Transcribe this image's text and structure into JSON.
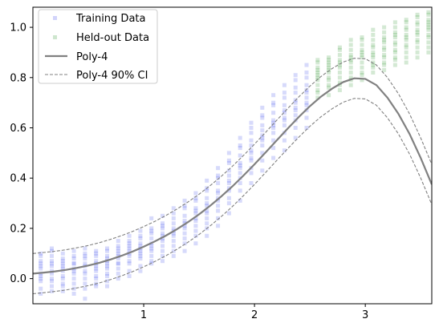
{
  "chart_data": {
    "type": "scatter",
    "title": "",
    "xlabel": "",
    "ylabel": "",
    "xlim": [
      0.0,
      3.6
    ],
    "ylim": [
      -0.1,
      1.08
    ],
    "x_ticks": [
      1,
      2,
      3
    ],
    "x_tick_labels": [
      "1",
      "2",
      "3"
    ],
    "y_ticks": [
      0.0,
      0.2,
      0.4,
      0.6,
      0.8,
      1.0
    ],
    "y_tick_labels": [
      "0.0",
      "0.2",
      "0.4",
      "0.6",
      "0.8",
      "1.0"
    ],
    "grid": false,
    "legend_position": "top-left",
    "colors": {
      "training": "#4a55ee",
      "heldout": "#3a9a3a",
      "fit": "#808080"
    },
    "series": [
      {
        "name": "Training Data",
        "kind": "points",
        "x": [
          0.07,
          0.07,
          0.07,
          0.07,
          0.07,
          0.07,
          0.07,
          0.07,
          0.07,
          0.07,
          0.07,
          0.07,
          0.17,
          0.17,
          0.17,
          0.17,
          0.17,
          0.17,
          0.17,
          0.17,
          0.17,
          0.17,
          0.17,
          0.17,
          0.27,
          0.27,
          0.27,
          0.27,
          0.27,
          0.27,
          0.27,
          0.27,
          0.27,
          0.27,
          0.27,
          0.27,
          0.37,
          0.37,
          0.37,
          0.37,
          0.37,
          0.37,
          0.37,
          0.37,
          0.37,
          0.37,
          0.37,
          0.37,
          0.47,
          0.47,
          0.47,
          0.47,
          0.47,
          0.47,
          0.47,
          0.47,
          0.47,
          0.47,
          0.47,
          0.47,
          0.57,
          0.57,
          0.57,
          0.57,
          0.57,
          0.57,
          0.57,
          0.57,
          0.57,
          0.57,
          0.57,
          0.57,
          0.67,
          0.67,
          0.67,
          0.67,
          0.67,
          0.67,
          0.67,
          0.67,
          0.67,
          0.67,
          0.67,
          0.67,
          0.77,
          0.77,
          0.77,
          0.77,
          0.77,
          0.77,
          0.77,
          0.77,
          0.77,
          0.77,
          0.77,
          0.77,
          0.87,
          0.87,
          0.87,
          0.87,
          0.87,
          0.87,
          0.87,
          0.87,
          0.87,
          0.87,
          0.87,
          0.87,
          0.97,
          0.97,
          0.97,
          0.97,
          0.97,
          0.97,
          0.97,
          0.97,
          0.97,
          0.97,
          0.97,
          0.97,
          1.07,
          1.07,
          1.07,
          1.07,
          1.07,
          1.07,
          1.07,
          1.07,
          1.07,
          1.07,
          1.07,
          1.07,
          1.17,
          1.17,
          1.17,
          1.17,
          1.17,
          1.17,
          1.17,
          1.17,
          1.17,
          1.17,
          1.17,
          1.17,
          1.27,
          1.27,
          1.27,
          1.27,
          1.27,
          1.27,
          1.27,
          1.27,
          1.27,
          1.27,
          1.27,
          1.27,
          1.37,
          1.37,
          1.37,
          1.37,
          1.37,
          1.37,
          1.37,
          1.37,
          1.37,
          1.37,
          1.37,
          1.37,
          1.47,
          1.47,
          1.47,
          1.47,
          1.47,
          1.47,
          1.47,
          1.47,
          1.47,
          1.47,
          1.47,
          1.47,
          1.57,
          1.57,
          1.57,
          1.57,
          1.57,
          1.57,
          1.57,
          1.57,
          1.57,
          1.57,
          1.57,
          1.57,
          1.67,
          1.67,
          1.67,
          1.67,
          1.67,
          1.67,
          1.67,
          1.67,
          1.67,
          1.67,
          1.67,
          1.67,
          1.77,
          1.77,
          1.77,
          1.77,
          1.77,
          1.77,
          1.77,
          1.77,
          1.77,
          1.77,
          1.77,
          1.77,
          1.87,
          1.87,
          1.87,
          1.87,
          1.87,
          1.87,
          1.87,
          1.87,
          1.87,
          1.87,
          1.87,
          1.87,
          1.97,
          1.97,
          1.97,
          1.97,
          1.97,
          1.97,
          1.97,
          1.97,
          1.97,
          1.97,
          1.97,
          1.97,
          2.07,
          2.07,
          2.07,
          2.07,
          2.07,
          2.07,
          2.07,
          2.07,
          2.07,
          2.07,
          2.07,
          2.07,
          2.17,
          2.17,
          2.17,
          2.17,
          2.17,
          2.17,
          2.17,
          2.17,
          2.17,
          2.17,
          2.17,
          2.17,
          2.27,
          2.27,
          2.27,
          2.27,
          2.27,
          2.27,
          2.27,
          2.27,
          2.27,
          2.27,
          2.27,
          2.27,
          2.37,
          2.37,
          2.37,
          2.37,
          2.37,
          2.37,
          2.37,
          2.37,
          2.37,
          2.37,
          2.37,
          2.37,
          2.47,
          2.47,
          2.47,
          2.47,
          2.47,
          2.47,
          2.47,
          2.47,
          2.47,
          2.47,
          2.47,
          2.47
        ],
        "y": [
          0.06,
          0.02,
          -0.04,
          0.1,
          0.04,
          -0.01,
          0.07,
          0.0,
          -0.06,
          0.05,
          0.09,
          0.01,
          0.03,
          0.11,
          -0.03,
          0.05,
          0.0,
          0.07,
          -0.05,
          0.09,
          0.02,
          0.06,
          -0.01,
          0.12,
          0.04,
          -0.02,
          0.08,
          0.01,
          0.06,
          -0.05,
          0.1,
          0.03,
          0.0,
          0.07,
          -0.03,
          0.05,
          0.08,
          0.02,
          -0.04,
          0.06,
          0.11,
          0.0,
          0.04,
          -0.02,
          0.09,
          0.03,
          0.06,
          -0.06,
          0.05,
          0.1,
          -0.02,
          0.03,
          0.08,
          0.0,
          0.06,
          -0.04,
          0.09,
          0.02,
          0.12,
          -0.08,
          0.07,
          0.03,
          0.11,
          -0.02,
          0.05,
          0.09,
          0.01,
          0.06,
          -0.03,
          0.1,
          0.04,
          0.0,
          0.04,
          0.08,
          -0.01,
          0.12,
          0.05,
          0.02,
          0.09,
          -0.03,
          0.06,
          0.11,
          0.01,
          0.07,
          0.1,
          0.06,
          0.13,
          0.02,
          0.08,
          0.15,
          0.04,
          0.11,
          0.0,
          0.09,
          0.06,
          0.12,
          0.12,
          0.07,
          0.15,
          0.03,
          0.1,
          0.17,
          0.06,
          0.13,
          0.09,
          0.01,
          0.14,
          0.11,
          0.13,
          0.09,
          0.16,
          0.05,
          0.12,
          0.19,
          0.08,
          0.14,
          0.11,
          0.03,
          0.17,
          0.1,
          0.16,
          0.11,
          0.2,
          0.07,
          0.13,
          0.24,
          0.09,
          0.18,
          0.14,
          0.06,
          0.19,
          0.12,
          0.18,
          0.13,
          0.22,
          0.09,
          0.16,
          0.25,
          0.11,
          0.2,
          0.15,
          0.07,
          0.21,
          0.17,
          0.2,
          0.15,
          0.24,
          0.11,
          0.18,
          0.28,
          0.13,
          0.22,
          0.17,
          0.09,
          0.26,
          0.19,
          0.23,
          0.18,
          0.28,
          0.14,
          0.21,
          0.31,
          0.16,
          0.25,
          0.2,
          0.11,
          0.29,
          0.22,
          0.27,
          0.21,
          0.31,
          0.17,
          0.24,
          0.34,
          0.19,
          0.28,
          0.23,
          0.14,
          0.32,
          0.26,
          0.29,
          0.24,
          0.35,
          0.2,
          0.27,
          0.39,
          0.22,
          0.32,
          0.26,
          0.17,
          0.36,
          0.3,
          0.35,
          0.29,
          0.4,
          0.24,
          0.32,
          0.44,
          0.27,
          0.38,
          0.31,
          0.21,
          0.41,
          0.34,
          0.41,
          0.35,
          0.46,
          0.3,
          0.38,
          0.5,
          0.32,
          0.43,
          0.36,
          0.26,
          0.47,
          0.39,
          0.46,
          0.4,
          0.52,
          0.35,
          0.44,
          0.56,
          0.38,
          0.49,
          0.42,
          0.31,
          0.53,
          0.45,
          0.53,
          0.47,
          0.58,
          0.42,
          0.5,
          0.62,
          0.44,
          0.55,
          0.48,
          0.38,
          0.6,
          0.51,
          0.59,
          0.53,
          0.64,
          0.47,
          0.56,
          0.68,
          0.5,
          0.61,
          0.55,
          0.43,
          0.65,
          0.57,
          0.63,
          0.58,
          0.69,
          0.52,
          0.61,
          0.73,
          0.55,
          0.66,
          0.6,
          0.48,
          0.7,
          0.62,
          0.66,
          0.61,
          0.72,
          0.55,
          0.64,
          0.77,
          0.58,
          0.69,
          0.63,
          0.51,
          0.74,
          0.67,
          0.71,
          0.65,
          0.76,
          0.6,
          0.68,
          0.81,
          0.63,
          0.74,
          0.67,
          0.56,
          0.79,
          0.7,
          0.74,
          0.69,
          0.8,
          0.64,
          0.72,
          0.85,
          0.67,
          0.77,
          0.7,
          0.6,
          0.82,
          0.75
        ]
      },
      {
        "name": "Held-out Data",
        "kind": "points",
        "x": [
          2.57,
          2.57,
          2.57,
          2.57,
          2.57,
          2.57,
          2.57,
          2.57,
          2.57,
          2.57,
          2.57,
          2.57,
          2.67,
          2.67,
          2.67,
          2.67,
          2.67,
          2.67,
          2.67,
          2.67,
          2.67,
          2.67,
          2.67,
          2.67,
          2.77,
          2.77,
          2.77,
          2.77,
          2.77,
          2.77,
          2.77,
          2.77,
          2.77,
          2.77,
          2.77,
          2.77,
          2.87,
          2.87,
          2.87,
          2.87,
          2.87,
          2.87,
          2.87,
          2.87,
          2.87,
          2.87,
          2.87,
          2.87,
          2.97,
          2.97,
          2.97,
          2.97,
          2.97,
          2.97,
          2.97,
          2.97,
          2.97,
          2.97,
          2.97,
          2.97,
          3.07,
          3.07,
          3.07,
          3.07,
          3.07,
          3.07,
          3.07,
          3.07,
          3.07,
          3.07,
          3.07,
          3.07,
          3.17,
          3.17,
          3.17,
          3.17,
          3.17,
          3.17,
          3.17,
          3.17,
          3.17,
          3.17,
          3.17,
          3.17,
          3.27,
          3.27,
          3.27,
          3.27,
          3.27,
          3.27,
          3.27,
          3.27,
          3.27,
          3.27,
          3.27,
          3.27,
          3.37,
          3.37,
          3.37,
          3.37,
          3.37,
          3.37,
          3.37,
          3.37,
          3.37,
          3.37,
          3.37,
          3.37,
          3.47,
          3.47,
          3.47,
          3.47,
          3.47,
          3.47,
          3.47,
          3.47,
          3.47,
          3.47,
          3.47,
          3.47,
          3.57,
          3.57,
          3.57,
          3.57,
          3.57,
          3.57,
          3.57,
          3.57,
          3.57,
          3.57,
          3.57,
          3.57
        ],
        "y": [
          0.84,
          0.79,
          0.87,
          0.75,
          0.82,
          0.72,
          0.8,
          0.86,
          0.77,
          0.83,
          0.74,
          0.81,
          0.86,
          0.8,
          0.88,
          0.77,
          0.84,
          0.73,
          0.82,
          0.87,
          0.79,
          0.85,
          0.76,
          0.83,
          0.87,
          0.82,
          0.91,
          0.78,
          0.85,
          0.75,
          0.89,
          0.8,
          0.84,
          0.77,
          0.92,
          0.86,
          0.89,
          0.84,
          0.93,
          0.8,
          0.87,
          0.77,
          0.91,
          0.82,
          0.86,
          0.79,
          0.95,
          0.88,
          0.91,
          0.86,
          0.95,
          0.82,
          0.89,
          0.79,
          0.93,
          0.84,
          0.88,
          0.81,
          0.96,
          0.9,
          0.92,
          0.88,
          0.97,
          0.84,
          0.9,
          0.82,
          0.95,
          0.86,
          0.89,
          0.85,
          0.99,
          0.93,
          0.94,
          0.89,
          0.98,
          0.85,
          0.92,
          0.83,
          0.96,
          0.88,
          0.91,
          0.86,
          1.0,
          0.95,
          0.96,
          0.91,
          1.0,
          0.87,
          0.94,
          0.85,
          0.98,
          0.9,
          0.93,
          0.88,
          1.02,
          0.97,
          0.97,
          0.93,
          1.02,
          0.88,
          0.96,
          0.86,
          1.0,
          0.92,
          0.95,
          0.9,
          1.03,
          0.99,
          0.99,
          0.95,
          1.04,
          0.9,
          0.98,
          0.88,
          1.02,
          0.94,
          0.97,
          0.92,
          1.05,
          1.01,
          1.01,
          0.97,
          1.06,
          0.92,
          1.0,
          0.9,
          1.03,
          0.96,
          0.99,
          0.94,
          1.05,
          1.02
        ]
      },
      {
        "name": "Poly-4",
        "kind": "line",
        "x": [
          0.0,
          0.1,
          0.2,
          0.3,
          0.4,
          0.5,
          0.6,
          0.7,
          0.8,
          0.9,
          1.0,
          1.1,
          1.2,
          1.3,
          1.4,
          1.5,
          1.6,
          1.7,
          1.8,
          1.9,
          2.0,
          2.1,
          2.2,
          2.3,
          2.4,
          2.5,
          2.6,
          2.7,
          2.8,
          2.9,
          3.0,
          3.1,
          3.2,
          3.3,
          3.4,
          3.5,
          3.6
        ],
        "y": [
          0.02,
          0.024,
          0.029,
          0.035,
          0.043,
          0.052,
          0.063,
          0.076,
          0.091,
          0.108,
          0.127,
          0.148,
          0.171,
          0.197,
          0.225,
          0.256,
          0.29,
          0.327,
          0.367,
          0.41,
          0.455,
          0.502,
          0.55,
          0.597,
          0.643,
          0.686,
          0.724,
          0.756,
          0.782,
          0.797,
          0.795,
          0.77,
          0.72,
          0.655,
          0.575,
          0.48,
          0.375
        ]
      },
      {
        "name": "Poly-4 90% CI",
        "kind": "band-upper",
        "x": [
          0.0,
          0.1,
          0.2,
          0.3,
          0.4,
          0.5,
          0.6,
          0.7,
          0.8,
          0.9,
          1.0,
          1.1,
          1.2,
          1.3,
          1.4,
          1.5,
          1.6,
          1.7,
          1.8,
          1.9,
          2.0,
          2.1,
          2.2,
          2.3,
          2.4,
          2.5,
          2.6,
          2.7,
          2.8,
          2.9,
          3.0,
          3.1,
          3.2,
          3.3,
          3.4,
          3.5,
          3.6
        ],
        "y": [
          0.1,
          0.104,
          0.109,
          0.115,
          0.123,
          0.132,
          0.143,
          0.156,
          0.171,
          0.188,
          0.207,
          0.228,
          0.251,
          0.277,
          0.305,
          0.336,
          0.37,
          0.407,
          0.447,
          0.49,
          0.535,
          0.582,
          0.63,
          0.677,
          0.723,
          0.766,
          0.804,
          0.836,
          0.862,
          0.877,
          0.875,
          0.85,
          0.8,
          0.735,
          0.655,
          0.56,
          0.455
        ]
      },
      {
        "name": "",
        "kind": "band-lower",
        "x": [
          0.0,
          0.1,
          0.2,
          0.3,
          0.4,
          0.5,
          0.6,
          0.7,
          0.8,
          0.9,
          1.0,
          1.1,
          1.2,
          1.3,
          1.4,
          1.5,
          1.6,
          1.7,
          1.8,
          1.9,
          2.0,
          2.1,
          2.2,
          2.3,
          2.4,
          2.5,
          2.6,
          2.7,
          2.8,
          2.9,
          3.0,
          3.1,
          3.2,
          3.3,
          3.4,
          3.5,
          3.6
        ],
        "y": [
          -0.06,
          -0.056,
          -0.051,
          -0.045,
          -0.037,
          -0.028,
          -0.017,
          -0.004,
          0.011,
          0.028,
          0.047,
          0.068,
          0.091,
          0.117,
          0.145,
          0.176,
          0.21,
          0.247,
          0.287,
          0.33,
          0.375,
          0.422,
          0.47,
          0.517,
          0.563,
          0.606,
          0.644,
          0.676,
          0.702,
          0.717,
          0.715,
          0.69,
          0.64,
          0.575,
          0.495,
          0.4,
          0.295
        ]
      }
    ]
  }
}
